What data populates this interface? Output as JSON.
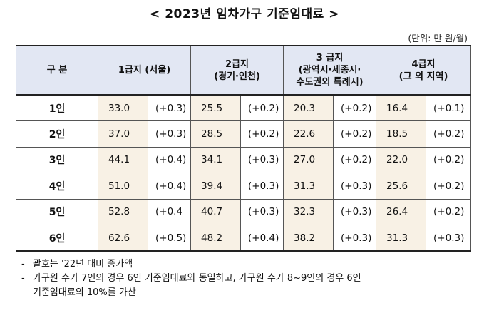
{
  "title": "< 2023년 임차가구 기준임대료 >",
  "unit": "(단위: 만 원/월)",
  "table": {
    "headers": {
      "category": "구 분",
      "g1": [
        "1급지 (서울)"
      ],
      "g2": [
        "2급지",
        "(경기·인천)"
      ],
      "g3": [
        "3 급지",
        "(광역시·세종시·",
        "수도권외 특례시)"
      ],
      "g4": [
        "4급지",
        "(그 외 지역)"
      ]
    },
    "rows": [
      {
        "label": "1인",
        "cells": [
          [
            "33.0",
            "(+0.3)"
          ],
          [
            "25.5",
            "(+0.2)"
          ],
          [
            "20.3",
            "(+0.2)"
          ],
          [
            "16.4",
            "(+0.1)"
          ]
        ]
      },
      {
        "label": "2인",
        "cells": [
          [
            "37.0",
            "(+0.3)"
          ],
          [
            "28.5",
            "(+0.2)"
          ],
          [
            "22.6",
            "(+0.2)"
          ],
          [
            "18.5",
            "(+0.2)"
          ]
        ]
      },
      {
        "label": "3인",
        "cells": [
          [
            "44.1",
            "(+0.4)"
          ],
          [
            "34.1",
            "(+0.3)"
          ],
          [
            "27.0",
            "(+0.2)"
          ],
          [
            "22.0",
            "(+0.2)"
          ]
        ]
      },
      {
        "label": "4인",
        "cells": [
          [
            "51.0",
            "(+0.4)"
          ],
          [
            "39.4",
            "(+0.3)"
          ],
          [
            "31.3",
            "(+0.3)"
          ],
          [
            "25.6",
            "(+0.2)"
          ]
        ]
      },
      {
        "label": "5인",
        "cells": [
          [
            "52.8",
            "(+0.4"
          ],
          [
            "40.7",
            "(+0.3)"
          ],
          [
            "32.3",
            "(+0.3)"
          ],
          [
            "26.4",
            "(+0.2)"
          ]
        ]
      },
      {
        "label": "6인",
        "cells": [
          [
            "62.6",
            "(+0.5)"
          ],
          [
            "48.2",
            "(+0.4)"
          ],
          [
            "38.2",
            "(+0.3)"
          ],
          [
            "31.3",
            "(+0.3)"
          ]
        ]
      }
    ]
  },
  "notes": {
    "dash": "-",
    "n1": "괄호는 '22년 대비 증가액",
    "n2a": "가구원 수가 7인의 경우 6인 기준임대료와 동일하고, 가구원 수가 8~9인의 경우 6인",
    "n2b": "기준임대료의 10%를 가산"
  },
  "colors": {
    "header_bg": "#e2e7f3",
    "value_bg": "#f8f1e5"
  }
}
